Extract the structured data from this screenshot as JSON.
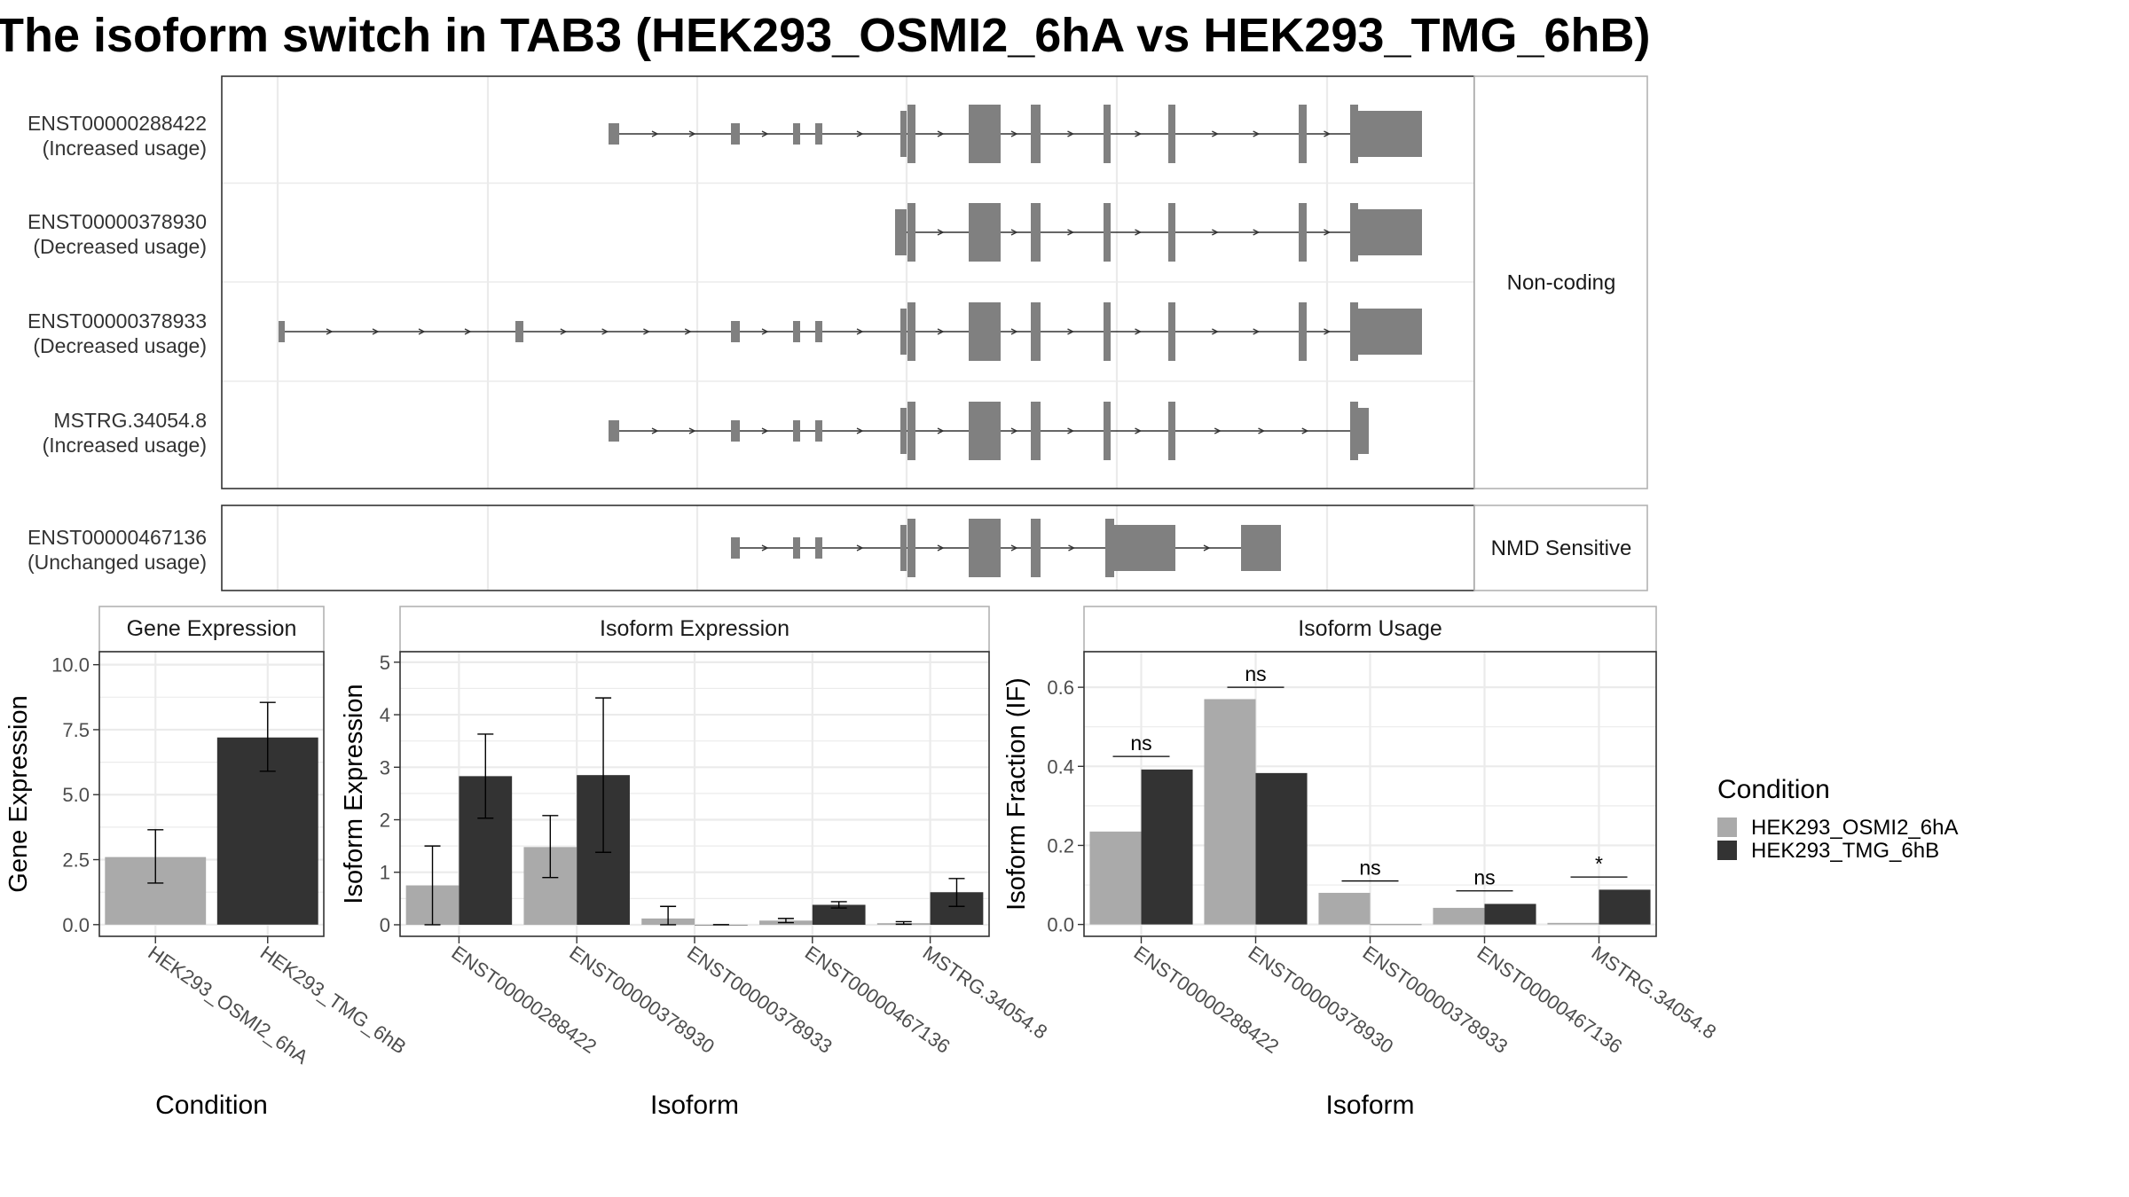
{
  "title": "The isoform switch in TAB3 (HEK293_OSMI2_6hA vs HEK293_TMG_6hB)",
  "colors": {
    "condition_a": "#aaaaaa",
    "condition_b": "#333333",
    "feature": "#808080",
    "grid": "#ebebeb",
    "strip_border": "#b3b3b3",
    "panel_border": "#333333"
  },
  "structure": {
    "groups": [
      {
        "strip": "Non-coding",
        "isoforms": [
          {
            "id": "ENST00000288422",
            "usage": "(Increased usage)"
          },
          {
            "id": "ENST00000378930",
            "usage": "(Decreased usage)"
          },
          {
            "id": "ENST00000378933",
            "usage": "(Decreased usage)"
          },
          {
            "id": "MSTRG.34054.8",
            "usage": "(Increased usage)"
          }
        ]
      },
      {
        "strip": "NMD Sensitive",
        "isoforms": [
          {
            "id": "ENST00000467136",
            "usage": "(Unchanged usage)"
          }
        ]
      }
    ]
  },
  "chart_data": [
    {
      "type": "bar",
      "strip": "Gene Expression",
      "xlabel": "Condition",
      "ylabel": "Gene Expression",
      "categories": [
        "HEK293_OSMI2_6hA",
        "HEK293_TMG_6hB"
      ],
      "values": [
        2.6,
        7.2
      ],
      "error_low": [
        1.6,
        5.9
      ],
      "error_high": [
        3.65,
        8.55
      ],
      "ylim": [
        -0.45,
        10.5
      ],
      "yticks": [
        "0.0",
        "2.5",
        "5.0",
        "7.5",
        "10.0"
      ],
      "grid": true
    },
    {
      "type": "bar",
      "strip": "Isoform Expression",
      "xlabel": "Isoform",
      "ylabel": "Isoform Expression",
      "categories": [
        "ENST00000288422",
        "ENST00000378930",
        "ENST00000378933",
        "ENST00000467136",
        "MSTRG.34054.8"
      ],
      "series": [
        {
          "name": "HEK293_OSMI2_6hA",
          "values": [
            0.75,
            1.48,
            0.12,
            0.08,
            0.03
          ],
          "error_low": [
            0.0,
            0.9,
            0.0,
            0.04,
            0.01
          ],
          "error_high": [
            1.5,
            2.08,
            0.35,
            0.12,
            0.06
          ]
        },
        {
          "name": "HEK293_TMG_6hB",
          "values": [
            2.83,
            2.85,
            0.0,
            0.38,
            0.62
          ],
          "error_low": [
            2.03,
            1.38,
            0.0,
            0.32,
            0.35
          ],
          "error_high": [
            3.63,
            4.32,
            0.0,
            0.44,
            0.88
          ]
        }
      ],
      "ylim": [
        -0.22,
        5.2
      ],
      "yticks": [
        "0",
        "1",
        "2",
        "3",
        "4",
        "5"
      ],
      "grid": true
    },
    {
      "type": "bar",
      "strip": "Isoform Usage",
      "xlabel": "Isoform",
      "ylabel": "Isoform Fraction (IF)",
      "categories": [
        "ENST00000288422",
        "ENST00000378930",
        "ENST00000378933",
        "ENST00000467136",
        "MSTRG.34054.8"
      ],
      "series": [
        {
          "name": "HEK293_OSMI2_6hA",
          "values": [
            0.235,
            0.57,
            0.08,
            0.042,
            0.004
          ]
        },
        {
          "name": "HEK293_TMG_6hB",
          "values": [
            0.392,
            0.383,
            0.0,
            0.052,
            0.088
          ]
        }
      ],
      "significance": [
        "ns",
        "ns",
        "ns",
        "ns",
        "*"
      ],
      "significance_y": [
        0.425,
        0.6,
        0.11,
        0.085,
        0.12
      ],
      "ylim": [
        -0.03,
        0.69
      ],
      "yticks": [
        "0.0",
        "0.2",
        "0.4",
        "0.6"
      ],
      "grid": true
    }
  ],
  "legend": {
    "title": "Condition",
    "entries": [
      "HEK293_OSMI2_6hA",
      "HEK293_TMG_6hB"
    ],
    "placement": "right"
  }
}
